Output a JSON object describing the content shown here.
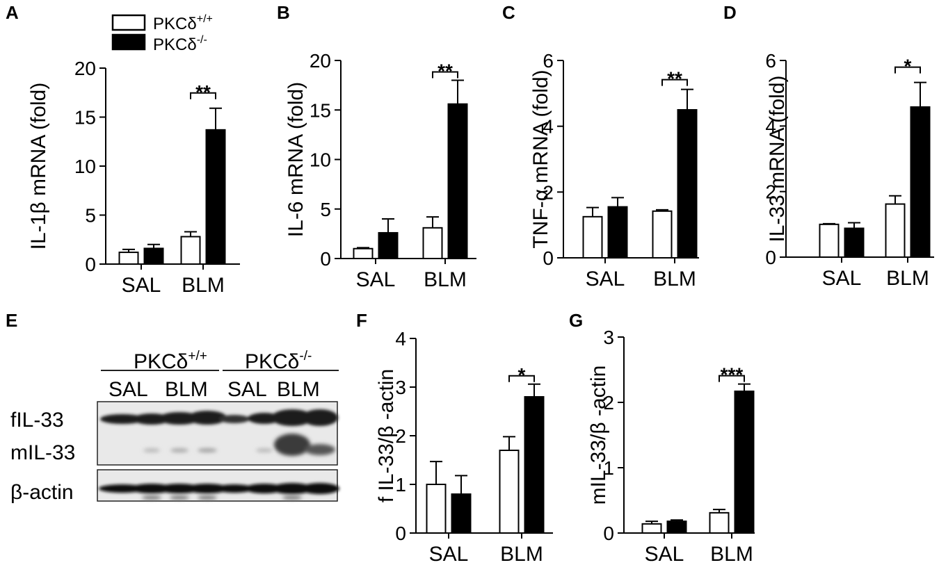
{
  "legend": {
    "items": [
      {
        "base": "PKCδ",
        "sup": "+/+",
        "fill": "#ffffff"
      },
      {
        "base": "PKCδ",
        "sup": "-/-",
        "fill": "#000000"
      }
    ]
  },
  "panels": {
    "A": "A",
    "B": "B",
    "C": "C",
    "D": "D",
    "E": "E",
    "F": "F",
    "G": "G"
  },
  "blot": {
    "groups": [
      {
        "base": "PKCδ",
        "sup": "+/+"
      },
      {
        "base": "PKCδ",
        "sup": "-/-"
      }
    ],
    "lanes": [
      "SAL",
      "BLM",
      "SAL",
      "BLM"
    ],
    "rows": [
      "fIL-33",
      "mIL-33",
      "β-actin"
    ]
  },
  "chart_data": [
    {
      "id": "A",
      "type": "bar",
      "categories": [
        "SAL",
        "BLM"
      ],
      "series": [
        {
          "name": "PKCδ+/+",
          "values": [
            1.2,
            2.8
          ],
          "errors": [
            0.3,
            0.5
          ]
        },
        {
          "name": "PKCδ-/-",
          "values": [
            1.6,
            13.7
          ],
          "errors": [
            0.4,
            2.2
          ]
        }
      ],
      "ylabel": "IL-1β mRNA (fold)",
      "ylim": [
        0,
        20
      ],
      "yticks": [
        0,
        5,
        10,
        15,
        20
      ],
      "significance": [
        {
          "category": "BLM",
          "label": "**"
        }
      ]
    },
    {
      "id": "B",
      "type": "bar",
      "categories": [
        "SAL",
        "BLM"
      ],
      "series": [
        {
          "name": "PKCδ+/+",
          "values": [
            1.0,
            3.1
          ],
          "errors": [
            0.1,
            1.1
          ]
        },
        {
          "name": "PKCδ-/-",
          "values": [
            2.6,
            15.6
          ],
          "errors": [
            1.4,
            2.4
          ]
        }
      ],
      "ylabel": "IL-6 mRNA (fold)",
      "ylim": [
        0,
        20
      ],
      "yticks": [
        0,
        5,
        10,
        15,
        20
      ],
      "significance": [
        {
          "category": "BLM",
          "label": "**"
        }
      ]
    },
    {
      "id": "C",
      "type": "bar",
      "categories": [
        "SAL",
        "BLM"
      ],
      "series": [
        {
          "name": "PKCδ+/+",
          "values": [
            1.25,
            1.42
          ],
          "errors": [
            0.28,
            0.04
          ]
        },
        {
          "name": "PKCδ-/-",
          "values": [
            1.55,
            4.5
          ],
          "errors": [
            0.28,
            0.62
          ]
        }
      ],
      "ylabel": "TNF-α mRNA (fold)",
      "ylim": [
        0,
        6
      ],
      "yticks": [
        0,
        2,
        4,
        6
      ],
      "significance": [
        {
          "category": "BLM",
          "label": "**"
        }
      ]
    },
    {
      "id": "D",
      "type": "bar",
      "categories": [
        "SAL",
        "BLM"
      ],
      "series": [
        {
          "name": "PKCδ+/+",
          "values": [
            1.0,
            1.62
          ],
          "errors": [
            0.02,
            0.25
          ]
        },
        {
          "name": "PKCδ-/-",
          "values": [
            0.88,
            4.58
          ],
          "errors": [
            0.17,
            0.75
          ]
        }
      ],
      "ylabel": "IL-33 mRNA (fold)",
      "ylim": [
        0,
        6
      ],
      "yticks": [
        0,
        2,
        4,
        6
      ],
      "significance": [
        {
          "category": "BLM",
          "label": "*"
        }
      ]
    },
    {
      "id": "F",
      "type": "bar",
      "categories": [
        "SAL",
        "BLM"
      ],
      "series": [
        {
          "name": "PKCδ+/+",
          "values": [
            1.0,
            1.7
          ],
          "errors": [
            0.47,
            0.28
          ]
        },
        {
          "name": "PKCδ-/-",
          "values": [
            0.8,
            2.8
          ],
          "errors": [
            0.38,
            0.26
          ]
        }
      ],
      "ylabel": "f IL-33/β -actin",
      "ylim": [
        0,
        4
      ],
      "yticks": [
        0,
        1,
        2,
        3,
        4
      ],
      "significance": [
        {
          "category": "BLM",
          "label": "*"
        }
      ]
    },
    {
      "id": "G",
      "type": "bar",
      "categories": [
        "SAL",
        "BLM"
      ],
      "series": [
        {
          "name": "PKCδ+/+",
          "values": [
            0.14,
            0.31
          ],
          "errors": [
            0.04,
            0.05
          ]
        },
        {
          "name": "PKCδ-/-",
          "values": [
            0.18,
            2.17
          ],
          "errors": [
            0.02,
            0.11
          ]
        }
      ],
      "ylabel": "mIL-33/β -actin",
      "ylim": [
        0,
        3
      ],
      "yticks": [
        0,
        1,
        2,
        3
      ],
      "significance": [
        {
          "category": "BLM",
          "label": "***"
        }
      ]
    }
  ]
}
